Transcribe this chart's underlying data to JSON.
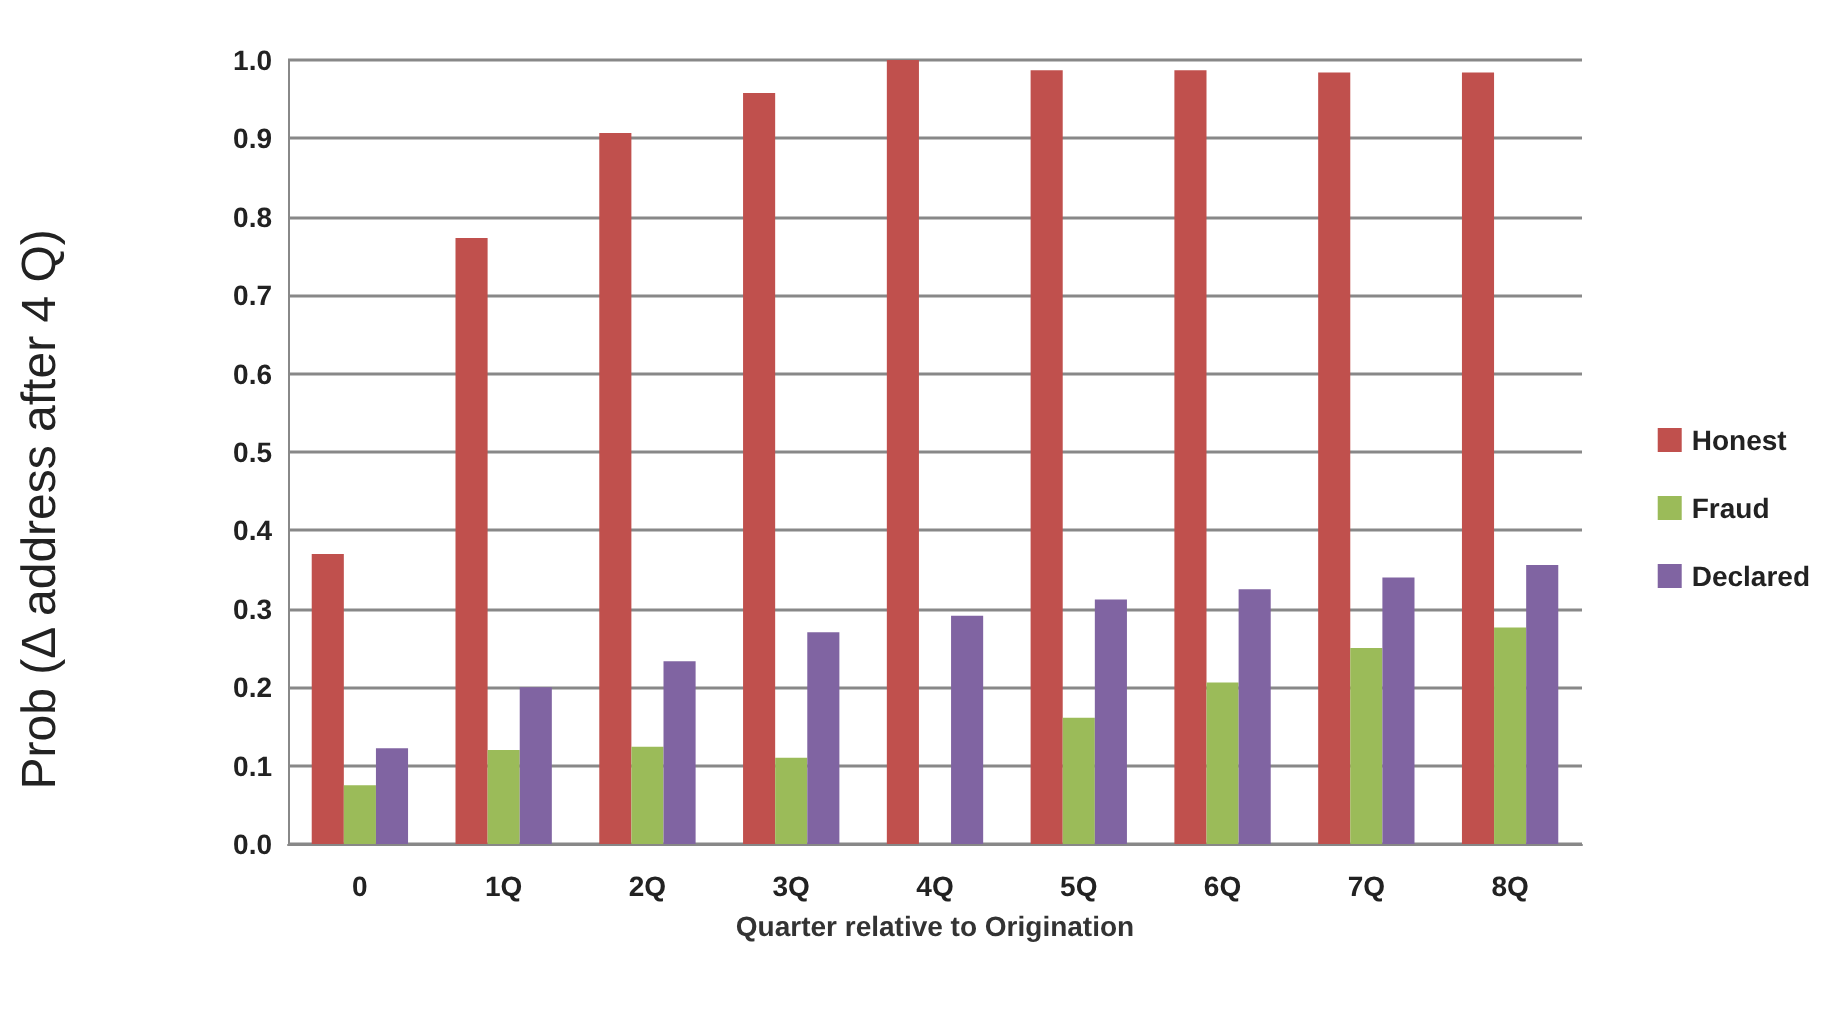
{
  "chart_data": {
    "type": "bar",
    "xlabel": "Quarter relative to Origination",
    "ylabel": "Prob (Δ address after 4 Q)",
    "categories": [
      "0",
      "1Q",
      "2Q",
      "3Q",
      "4Q",
      "5Q",
      "6Q",
      "7Q",
      "8Q"
    ],
    "series": [
      {
        "name": "Honest",
        "color": "#c0504d",
        "values": [
          0.37,
          0.773,
          0.907,
          0.958,
          1.0,
          0.987,
          0.987,
          0.984,
          0.984
        ]
      },
      {
        "name": "Fraud",
        "color": "#9bbb59",
        "values": [
          0.075,
          0.12,
          0.124,
          0.11,
          null,
          0.161,
          0.206,
          0.25,
          0.276
        ]
      },
      {
        "name": "Declared",
        "color": "#8064a2",
        "values": [
          0.122,
          0.2,
          0.233,
          0.27,
          0.291,
          0.312,
          0.325,
          0.34,
          0.356
        ]
      }
    ],
    "ylim": [
      0,
      1
    ],
    "yticks": [
      {
        "value": 0,
        "label": "0.0"
      },
      {
        "value": 0.1,
        "label": "0.1"
      },
      {
        "value": 0.2,
        "label": "0.2"
      },
      {
        "value": 0.3,
        "label": "0.3"
      },
      {
        "value": 0.4,
        "label": "0.4"
      },
      {
        "value": 0.5,
        "label": "0.5"
      },
      {
        "value": 0.6,
        "label": "0.6"
      },
      {
        "value": 0.7,
        "label": "0.7"
      },
      {
        "value": 0.8,
        "label": "0.8"
      },
      {
        "value": 0.9,
        "label": "0.9"
      },
      {
        "value": 1,
        "label": "1.0"
      }
    ],
    "grid": "y",
    "legend": "right"
  }
}
